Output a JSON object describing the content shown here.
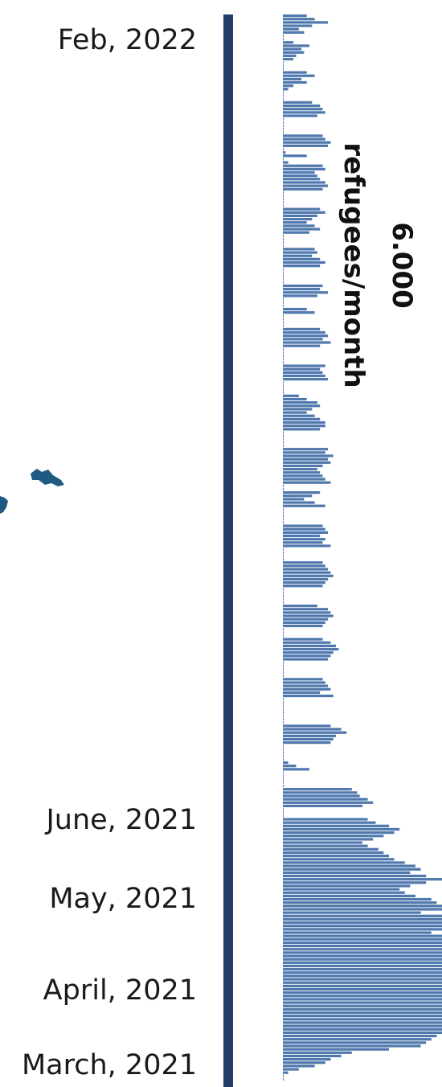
{
  "header_labels": [
    "Feb, 2022"
  ],
  "side_labels": [
    "June, 2021",
    "May, 2021",
    "April, 2021",
    "March, 2021"
  ],
  "big_label": {
    "value": "6.000",
    "unit": "refugees/month"
  },
  "colors": {
    "bar": "#4f78ad",
    "axis": "#223e6b",
    "map": "#1f5a82"
  },
  "chart_data": {
    "type": "bar",
    "orientation": "horizontal",
    "title": "",
    "xlabel": "",
    "ylabel": "",
    "xlim": [
      0,
      300
    ],
    "values": [
      45,
      60,
      85,
      55,
      30,
      40,
      0,
      0,
      20,
      50,
      35,
      40,
      25,
      20,
      0,
      0,
      0,
      45,
      60,
      35,
      45,
      20,
      10,
      0,
      0,
      0,
      55,
      70,
      75,
      80,
      65,
      0,
      0,
      0,
      0,
      0,
      75,
      80,
      90,
      85,
      0,
      5,
      45,
      0,
      10,
      75,
      80,
      60,
      65,
      70,
      80,
      85,
      75,
      0,
      0,
      0,
      0,
      0,
      70,
      80,
      65,
      55,
      45,
      60,
      70,
      50,
      0,
      0,
      0,
      0,
      60,
      65,
      55,
      70,
      80,
      70,
      0,
      0,
      0,
      0,
      0,
      75,
      70,
      85,
      65,
      0,
      0,
      0,
      45,
      60,
      0,
      0,
      0,
      0,
      70,
      80,
      85,
      75,
      90,
      70,
      0,
      0,
      0,
      0,
      0,
      80,
      70,
      75,
      80,
      85,
      0,
      0,
      0,
      0,
      30,
      45,
      65,
      70,
      55,
      45,
      60,
      70,
      80,
      80,
      70,
      0,
      0,
      0,
      0,
      0,
      85,
      80,
      95,
      85,
      90,
      75,
      65,
      70,
      75,
      80,
      90,
      0,
      0,
      70,
      55,
      40,
      60,
      80,
      0,
      0,
      0,
      0,
      0,
      75,
      80,
      85,
      70,
      80,
      75,
      90,
      0,
      0,
      0,
      0,
      75,
      80,
      85,
      90,
      95,
      85,
      80,
      75,
      0,
      0,
      0,
      0,
      0,
      65,
      85,
      90,
      95,
      85,
      80,
      75,
      0,
      0,
      0,
      75,
      90,
      100,
      105,
      95,
      90,
      85,
      0,
      0,
      0,
      0,
      0,
      75,
      80,
      85,
      90,
      70,
      95,
      0,
      0,
      0,
      0,
      0,
      0,
      0,
      0,
      90,
      110,
      120,
      100,
      95,
      90,
      0,
      0,
      0,
      0,
      0,
      10,
      25,
      50,
      0,
      0,
      0,
      0,
      0,
      130,
      140,
      145,
      160,
      170,
      150,
      0,
      0,
      0,
      160,
      175,
      200,
      220,
      210,
      190,
      170,
      150,
      160,
      180,
      190,
      200,
      210,
      230,
      250,
      260,
      240,
      270,
      300,
      270,
      240,
      220,
      230,
      250,
      280,
      290,
      300,
      300,
      260,
      300,
      300,
      300,
      300,
      300,
      280,
      300,
      300,
      300,
      300,
      300,
      300,
      300,
      300,
      300,
      300,
      300,
      300,
      300,
      300,
      300,
      300,
      300,
      300,
      300,
      300,
      300,
      300,
      300,
      300,
      300,
      300,
      300,
      300,
      300,
      300,
      290,
      280,
      270,
      260,
      200,
      130,
      110,
      90,
      80,
      60,
      30,
      10,
      0,
      0
    ]
  }
}
